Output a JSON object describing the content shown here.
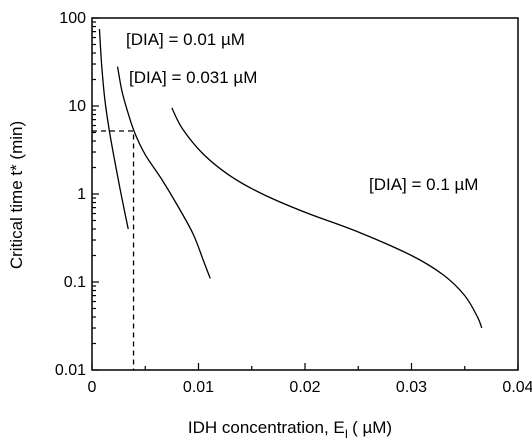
{
  "chart_data": {
    "type": "line",
    "title": "",
    "xlabel": "IDH concentration, E",
    "xlabel_sub": "I",
    "xlabel_unit": "( µM)",
    "ylabel": "Critical time t* (min)",
    "xlim": [
      0,
      0.04
    ],
    "ylim": [
      0.01,
      100
    ],
    "y_scale": "log",
    "grid": false,
    "x_ticks": [
      "0",
      "0.01",
      "0.02",
      "0.03",
      "0.04"
    ],
    "x_tick_values": [
      0,
      0.01,
      0.02,
      0.03,
      0.04
    ],
    "y_ticks": [
      "0.01",
      "0.1",
      "1",
      "10",
      "100"
    ],
    "y_tick_values": [
      0.01,
      0.1,
      1,
      10,
      100
    ],
    "series": [
      {
        "label": "[DIA] = 0.01 µM",
        "points": [
          [
            0.0007,
            75
          ],
          [
            0.0009,
            30
          ],
          [
            0.0012,
            12
          ],
          [
            0.0016,
            5.5
          ],
          [
            0.0021,
            2.5
          ],
          [
            0.0026,
            1.2
          ],
          [
            0.0031,
            0.6
          ],
          [
            0.0034,
            0.4
          ]
        ]
      },
      {
        "label": "[DIA] = 0.031 µM",
        "points": [
          [
            0.0024,
            28
          ],
          [
            0.0028,
            15
          ],
          [
            0.0033,
            9
          ],
          [
            0.004,
            5
          ],
          [
            0.005,
            2.8
          ],
          [
            0.0065,
            1.5
          ],
          [
            0.008,
            0.75
          ],
          [
            0.0095,
            0.35
          ],
          [
            0.0105,
            0.17
          ],
          [
            0.0111,
            0.11
          ]
        ]
      },
      {
        "label": "[DIA] = 0.1 µM",
        "points": [
          [
            0.0075,
            9.5
          ],
          [
            0.0085,
            5.5
          ],
          [
            0.0105,
            2.8
          ],
          [
            0.013,
            1.6
          ],
          [
            0.016,
            1.0
          ],
          [
            0.02,
            0.62
          ],
          [
            0.025,
            0.37
          ],
          [
            0.03,
            0.2
          ],
          [
            0.033,
            0.12
          ],
          [
            0.035,
            0.07
          ],
          [
            0.0362,
            0.04
          ],
          [
            0.0366,
            0.03
          ]
        ]
      }
    ],
    "reference_lines": {
      "x": 0.0039,
      "y": 5.2
    }
  }
}
